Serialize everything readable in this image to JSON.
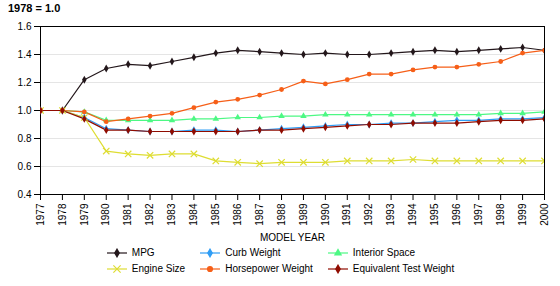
{
  "chart_data": {
    "type": "line",
    "title": "1978 = 1.0",
    "xlabel": "MODEL YEAR",
    "x": [
      1977,
      1978,
      1979,
      1980,
      1981,
      1982,
      1983,
      1984,
      1985,
      1986,
      1987,
      1988,
      1989,
      1990,
      1991,
      1992,
      1993,
      1994,
      1995,
      1996,
      1997,
      1998,
      1999,
      2000
    ],
    "series": [
      {
        "name": "MPG",
        "marker": "diamond",
        "values": [
          1.0,
          1.0,
          1.22,
          1.3,
          1.33,
          1.32,
          1.35,
          1.38,
          1.41,
          1.43,
          1.42,
          1.41,
          1.4,
          1.41,
          1.4,
          1.4,
          1.41,
          1.42,
          1.43,
          1.42,
          1.43,
          1.44,
          1.45,
          1.43
        ]
      },
      {
        "name": "Curb Weight",
        "marker": "diamond",
        "values": [
          1.0,
          1.0,
          0.95,
          0.87,
          0.86,
          0.85,
          0.85,
          0.86,
          0.86,
          0.85,
          0.86,
          0.87,
          0.88,
          0.89,
          0.9,
          0.9,
          0.91,
          0.91,
          0.92,
          0.93,
          0.93,
          0.94,
          0.94,
          0.95
        ]
      },
      {
        "name": "Interior Space",
        "marker": "triangle",
        "values": [
          1.0,
          1.0,
          0.99,
          0.93,
          0.93,
          0.93,
          0.93,
          0.94,
          0.94,
          0.95,
          0.95,
          0.96,
          0.96,
          0.97,
          0.97,
          0.97,
          0.97,
          0.97,
          0.97,
          0.97,
          0.97,
          0.98,
          0.98,
          0.99
        ]
      },
      {
        "name": "Engine Size",
        "marker": "x",
        "values": [
          1.0,
          1.0,
          0.95,
          0.71,
          0.69,
          0.68,
          0.69,
          0.69,
          0.64,
          0.63,
          0.62,
          0.63,
          0.63,
          0.63,
          0.64,
          0.64,
          0.64,
          0.65,
          0.64,
          0.64,
          0.64,
          0.64,
          0.64,
          0.64
        ]
      },
      {
        "name": "Horsepower Weight",
        "marker": "circle",
        "values": [
          1.0,
          1.0,
          0.99,
          0.92,
          0.94,
          0.96,
          0.98,
          1.02,
          1.06,
          1.08,
          1.11,
          1.15,
          1.21,
          1.19,
          1.22,
          1.26,
          1.26,
          1.29,
          1.31,
          1.31,
          1.33,
          1.35,
          1.41,
          1.43
        ]
      },
      {
        "name": "Equivalent Test Weight",
        "marker": "diamond",
        "values": [
          1.0,
          1.0,
          0.94,
          0.86,
          0.86,
          0.85,
          0.85,
          0.85,
          0.85,
          0.85,
          0.86,
          0.86,
          0.87,
          0.88,
          0.89,
          0.9,
          0.9,
          0.91,
          0.91,
          0.91,
          0.92,
          0.93,
          0.93,
          0.94
        ]
      }
    ],
    "xlim": [
      1977,
      2000
    ],
    "xticks": [
      1977,
      1978,
      1979,
      1980,
      1981,
      1982,
      1983,
      1984,
      1985,
      1986,
      1987,
      1988,
      1989,
      1990,
      1991,
      1992,
      1993,
      1994,
      1995,
      1996,
      1997,
      1998,
      1999,
      2000
    ],
    "ylim": [
      0.4,
      1.6
    ],
    "yticks": [
      0.4,
      0.6,
      0.8,
      {
        "value": 1.0,
        "label": "1.0"
      },
      1.2,
      1.4,
      1.6
    ],
    "grid": "y",
    "legend": "bottom"
  }
}
